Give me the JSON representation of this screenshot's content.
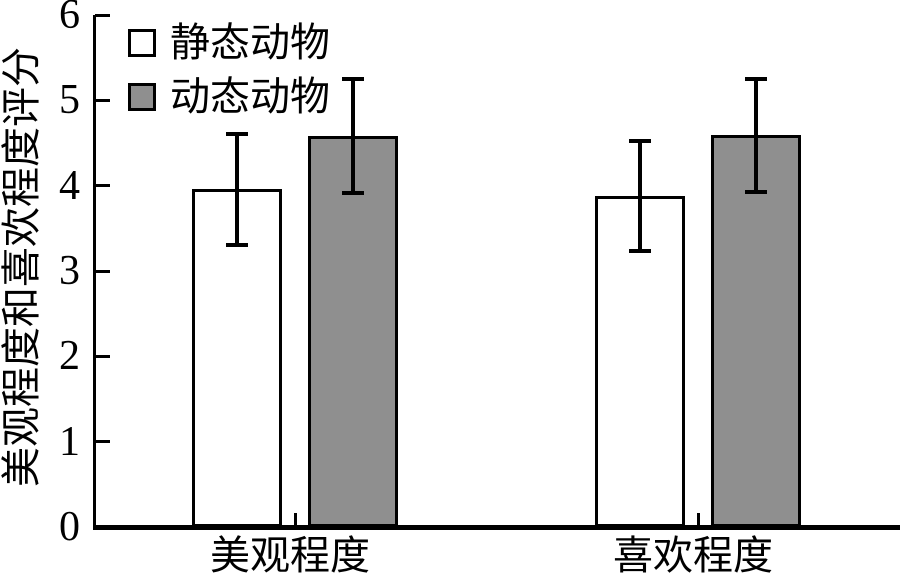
{
  "chart_data": {
    "type": "bar",
    "title": "",
    "xlabel": "",
    "ylabel": "美观程度和喜欢程度评分",
    "categories": [
      "美观程度",
      "喜欢程度"
    ],
    "series": [
      {
        "name": "静态动物",
        "fill": "#ffffff",
        "values": [
          3.96,
          3.88
        ],
        "errors": [
          0.65,
          0.64
        ]
      },
      {
        "name": "动态动物",
        "fill": "#8f8f8f",
        "values": [
          4.58,
          4.59
        ],
        "errors": [
          0.67,
          0.66
        ]
      }
    ],
    "ylim": [
      0,
      6
    ],
    "yticks": [
      "0",
      "1",
      "2",
      "3",
      "4",
      "5",
      "6"
    ],
    "grid": false,
    "legend_position": "top-left",
    "error_bars": true
  },
  "colors": {
    "stroke": "#000000",
    "static_bar": "#ffffff",
    "dynamic_bar": "#8f8f8f",
    "background": "#ffffff"
  }
}
